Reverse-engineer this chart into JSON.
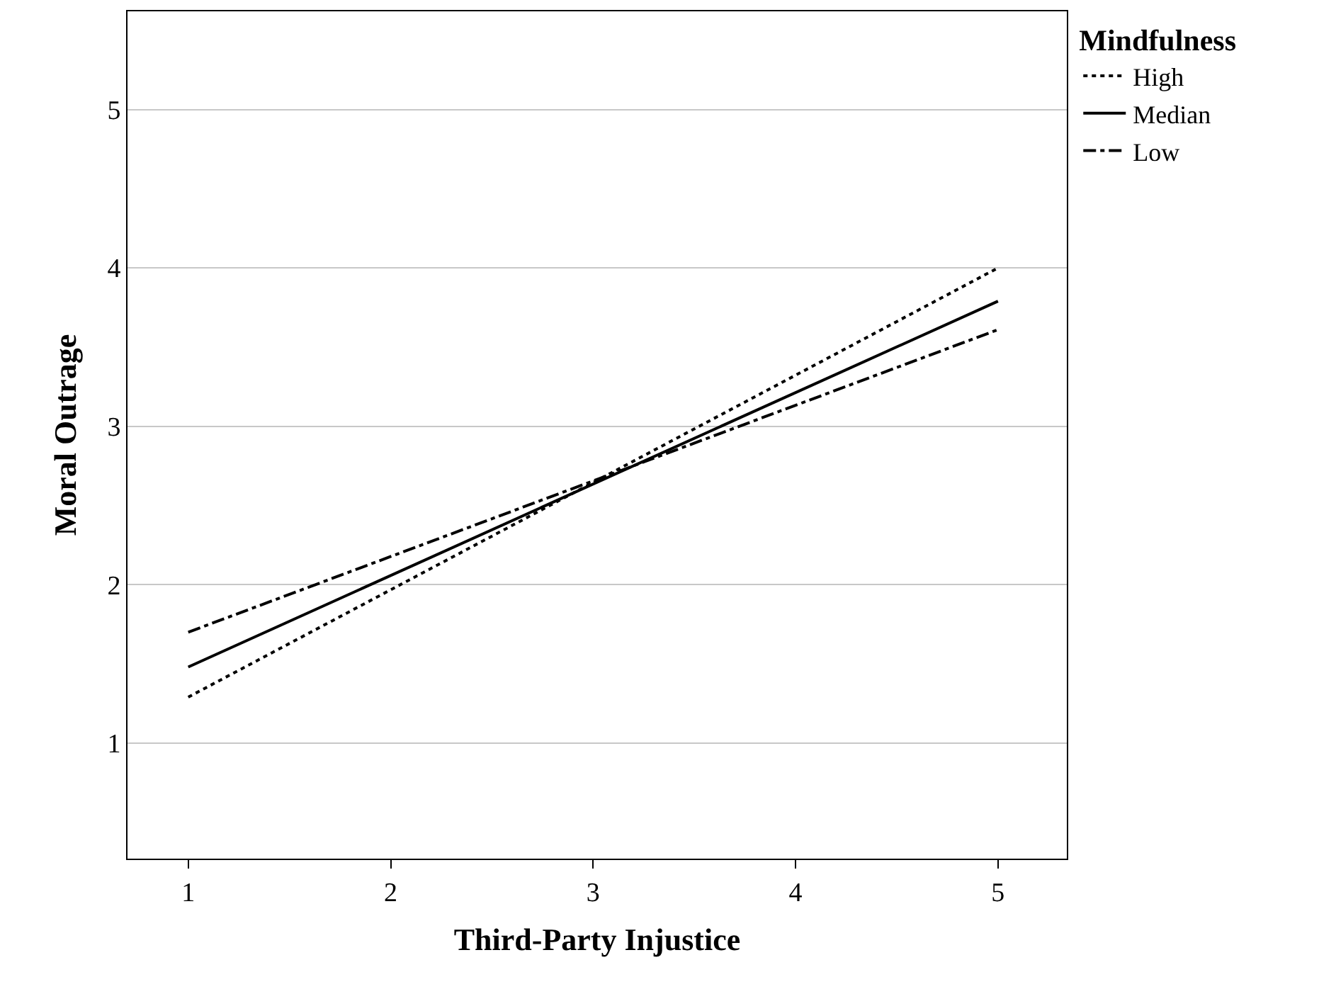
{
  "chart_data": {
    "type": "line",
    "xlabel": "Third-Party Injustice",
    "ylabel": "Moral Outrage",
    "legend_title": "Mindfulness",
    "x": [
      1,
      5
    ],
    "series": [
      {
        "name": "High",
        "color": "#000000",
        "values": [
          1.29,
          4.0
        ],
        "line_style": "dotted"
      },
      {
        "name": "Median",
        "color": "#000000",
        "values": [
          1.48,
          3.79
        ],
        "line_style": "solid"
      },
      {
        "name": "Low",
        "color": "#000000",
        "values": [
          1.7,
          3.61
        ],
        "line_style": "dashdot"
      }
    ],
    "xlim": [
      0.7,
      5.34
    ],
    "ylim": [
      0.27,
      5.62
    ],
    "xticks": [
      1,
      2,
      3,
      4,
      5
    ],
    "yticks": [
      1,
      2,
      3,
      4,
      5
    ],
    "grid": "y",
    "legend": "top right",
    "marker": "none"
  }
}
